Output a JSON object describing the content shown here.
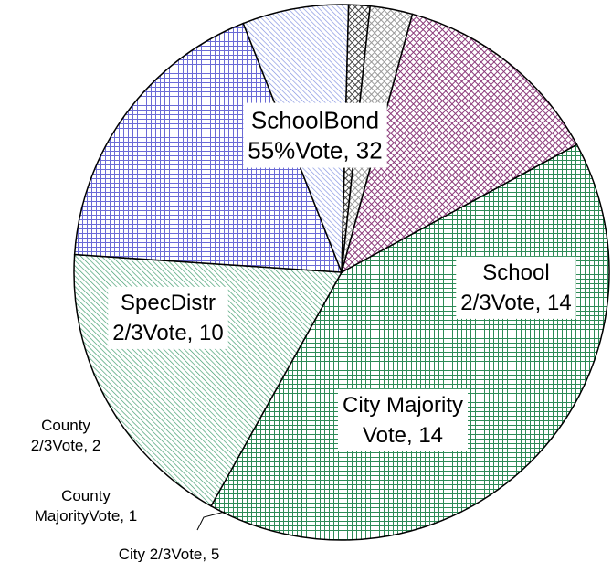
{
  "chart_data": {
    "type": "pie",
    "title": "",
    "slices": [
      {
        "label_lines": [
          "SchoolBond",
          "55%Vote, 32"
        ],
        "value": 32,
        "color": "#2e8b57",
        "pattern": "grid"
      },
      {
        "label_lines": [
          "School",
          "2/3Vote, 14"
        ],
        "value": 14,
        "color": "#3a9a6a",
        "pattern": "diagonal"
      },
      {
        "label_lines": [
          "City Majority",
          "Vote, 14"
        ],
        "value": 14,
        "color": "#6b6bd6",
        "pattern": "grid"
      },
      {
        "label_lines": [
          "City 2/3Vote, 5"
        ],
        "value": 5,
        "color": "#7f8fe0",
        "pattern": "diagonal"
      },
      {
        "label_lines": [
          "County",
          "MajorityVote, 1"
        ],
        "value": 1,
        "color": "#444444",
        "pattern": "crosshatch"
      },
      {
        "label_lines": [
          "County",
          "2/3Vote, 2"
        ],
        "value": 2,
        "color": "#9a9a9a",
        "pattern": "crosshatch"
      },
      {
        "label_lines": [
          "SpecDistr",
          "2/3Vote, 10"
        ],
        "value": 10,
        "color": "#8b3a7a",
        "pattern": "crosshatch"
      }
    ]
  }
}
